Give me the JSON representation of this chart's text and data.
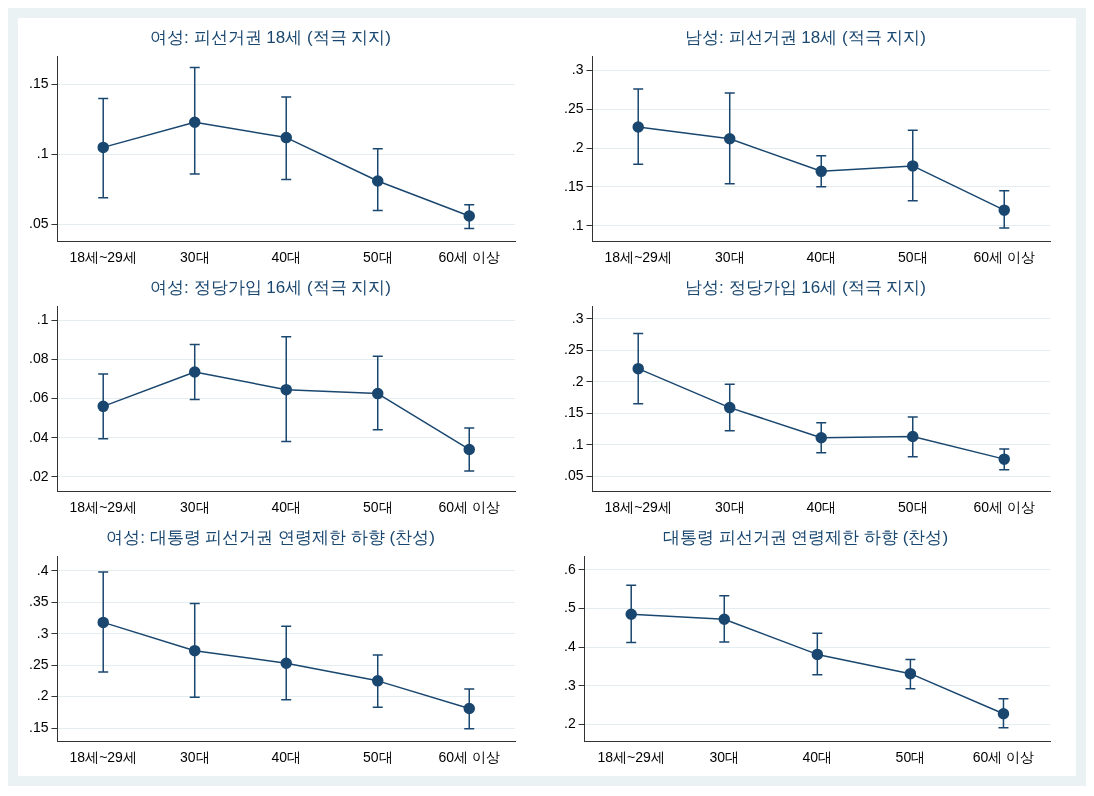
{
  "chart_data": [
    {
      "type": "line",
      "title": "여성: 피선거권 18세 (적극 지지)",
      "categories": [
        "18세~29세",
        "30대",
        "40대",
        "50대",
        "60세 이상"
      ],
      "series": [
        {
          "color": "#1a476f",
          "values": [
            0.105,
            0.123,
            0.112,
            0.081,
            0.056
          ],
          "errors": [
            [
              0.069,
              0.14
            ],
            [
              0.086,
              0.162
            ],
            [
              0.082,
              0.141
            ],
            [
              0.06,
              0.104
            ],
            [
              0.047,
              0.064
            ]
          ]
        }
      ],
      "ylim": [
        0.038,
        0.17
      ],
      "yticks": [
        {
          "value": 0.05,
          "label": ".05"
        },
        {
          "value": 0.1,
          "label": ".1"
        },
        {
          "value": 0.15,
          "label": ".15"
        }
      ],
      "grid": "y",
      "marker": "circle"
    },
    {
      "type": "line",
      "title": "남성: 피선거권 18세 (적극 지지)",
      "categories": [
        "18세~29세",
        "30대",
        "40대",
        "50대",
        "60세 이상"
      ],
      "series": [
        {
          "color": "#1a476f",
          "values": [
            0.227,
            0.212,
            0.17,
            0.177,
            0.12
          ],
          "errors": [
            [
              0.179,
              0.276
            ],
            [
              0.154,
              0.271
            ],
            [
              0.15,
              0.19
            ],
            [
              0.132,
              0.223
            ],
            [
              0.097,
              0.145
            ]
          ]
        }
      ],
      "ylim": [
        0.08,
        0.318
      ],
      "yticks": [
        {
          "value": 0.1,
          "label": ".1"
        },
        {
          "value": 0.15,
          "label": ".15"
        },
        {
          "value": 0.2,
          "label": ".2"
        },
        {
          "value": 0.25,
          "label": ".25"
        },
        {
          "value": 0.3,
          "label": ".3"
        }
      ],
      "grid": "y",
      "marker": "circle"
    },
    {
      "type": "line",
      "title": "여성: 정당가입 16세 (적극 지지)",
      "categories": [
        "18세~29세",
        "30대",
        "40대",
        "50대",
        "60세 이상"
      ],
      "series": [
        {
          "color": "#1a476f",
          "values": [
            0.056,
            0.0735,
            0.0645,
            0.0625,
            0.034
          ],
          "errors": [
            [
              0.0395,
              0.0725
            ],
            [
              0.0595,
              0.0875
            ],
            [
              0.038,
              0.0915
            ],
            [
              0.044,
              0.0815
            ],
            [
              0.023,
              0.045
            ]
          ]
        }
      ],
      "ylim": [
        0.0127,
        0.107
      ],
      "yticks": [
        {
          "value": 0.02,
          "label": ".02"
        },
        {
          "value": 0.04,
          "label": ".04"
        },
        {
          "value": 0.06,
          "label": ".06"
        },
        {
          "value": 0.08,
          "label": ".08"
        },
        {
          "value": 0.1,
          "label": ".1"
        }
      ],
      "grid": "y",
      "marker": "circle"
    },
    {
      "type": "line",
      "title": "남성: 정당가입 16세 (적극 지지)",
      "categories": [
        "18세~29세",
        "30대",
        "40대",
        "50대",
        "60세 이상"
      ],
      "series": [
        {
          "color": "#1a476f",
          "values": [
            0.221,
            0.159,
            0.111,
            0.113,
            0.077
          ],
          "errors": [
            [
              0.165,
              0.277
            ],
            [
              0.122,
              0.196
            ],
            [
              0.087,
              0.135
            ],
            [
              0.081,
              0.144
            ],
            [
              0.06,
              0.093
            ]
          ]
        }
      ],
      "ylim": [
        0.026,
        0.32
      ],
      "yticks": [
        {
          "value": 0.05,
          "label": ".05"
        },
        {
          "value": 0.1,
          "label": ".1"
        },
        {
          "value": 0.15,
          "label": ".15"
        },
        {
          "value": 0.2,
          "label": ".2"
        },
        {
          "value": 0.25,
          "label": ".25"
        },
        {
          "value": 0.3,
          "label": ".3"
        }
      ],
      "grid": "y",
      "marker": "circle"
    },
    {
      "type": "line",
      "title": "여성: 대통령 피선거권 연령제한 하향 (찬성)",
      "categories": [
        "18세~29세",
        "30대",
        "40대",
        "50대",
        "60세 이상"
      ],
      "series": [
        {
          "color": "#1a476f",
          "values": [
            0.318,
            0.273,
            0.253,
            0.225,
            0.181
          ],
          "errors": [
            [
              0.239,
              0.398
            ],
            [
              0.199,
              0.348
            ],
            [
              0.195,
              0.312
            ],
            [
              0.183,
              0.266
            ],
            [
              0.149,
              0.212
            ]
          ]
        }
      ],
      "ylim": [
        0.129,
        0.423
      ],
      "yticks": [
        {
          "value": 0.15,
          "label": ".15"
        },
        {
          "value": 0.2,
          "label": ".2"
        },
        {
          "value": 0.25,
          "label": ".25"
        },
        {
          "value": 0.3,
          "label": ".3"
        },
        {
          "value": 0.35,
          "label": ".35"
        },
        {
          "value": 0.4,
          "label": ".4"
        }
      ],
      "grid": "y",
      "marker": "circle"
    },
    {
      "type": "line",
      "title": "대통령 피선거권 연령제한 하향 (찬성)",
      "categories": [
        "18세~29세",
        "30대",
        "40대",
        "50대",
        "60세 이상"
      ],
      "series": [
        {
          "color": "#1a476f",
          "values": [
            0.485,
            0.472,
            0.381,
            0.331,
            0.227
          ],
          "errors": [
            [
              0.412,
              0.56
            ],
            [
              0.413,
              0.533
            ],
            [
              0.328,
              0.436
            ],
            [
              0.292,
              0.368
            ],
            [
              0.191,
              0.266
            ]
          ]
        }
      ],
      "ylim": [
        0.156,
        0.635
      ],
      "yticks": [
        {
          "value": 0.2,
          "label": ".2"
        },
        {
          "value": 0.3,
          "label": ".3"
        },
        {
          "value": 0.4,
          "label": ".4"
        },
        {
          "value": 0.5,
          "label": ".5"
        },
        {
          "value": 0.6,
          "label": ".6"
        }
      ],
      "grid": "y",
      "marker": "circle"
    }
  ]
}
